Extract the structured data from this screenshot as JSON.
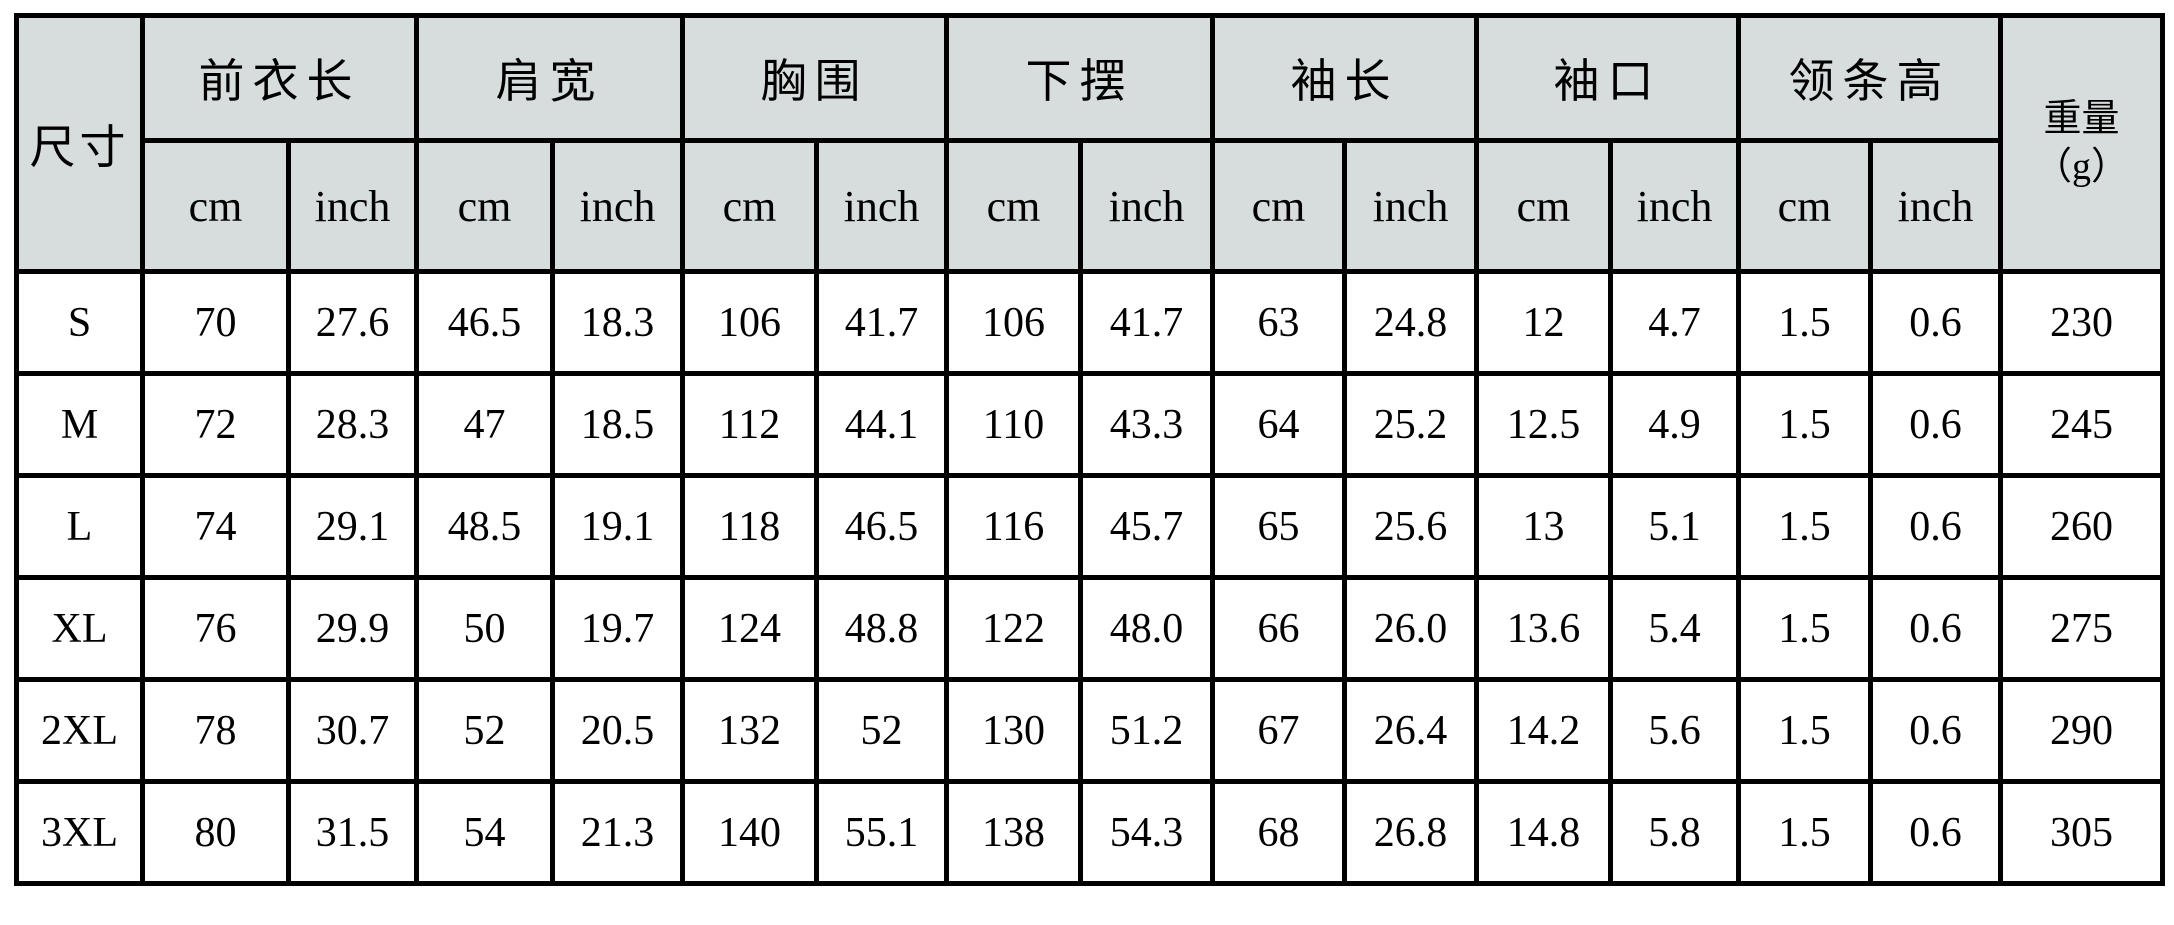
{
  "colors": {
    "header_bg": "#d6dddc",
    "border": "#000000",
    "row_bg": "#ffffff"
  },
  "table": {
    "size_col_header": "尺寸",
    "unit_cm": "cm",
    "unit_inch": "inch",
    "weight_header": {
      "line1": "重量",
      "line2": "（g）"
    },
    "groups": [
      {
        "label": "前衣长"
      },
      {
        "label": "肩宽"
      },
      {
        "label": "胸围"
      },
      {
        "label": "下摆"
      },
      {
        "label": "袖长"
      },
      {
        "label": "袖口"
      },
      {
        "label": "领条高"
      }
    ],
    "rows": [
      {
        "size": "S",
        "values": [
          "70",
          "27.6",
          "46.5",
          "18.3",
          "106",
          "41.7",
          "106",
          "41.7",
          "63",
          "24.8",
          "12",
          "4.7",
          "1.5",
          "0.6"
        ],
        "weight": "230"
      },
      {
        "size": "M",
        "values": [
          "72",
          "28.3",
          "47",
          "18.5",
          "112",
          "44.1",
          "110",
          "43.3",
          "64",
          "25.2",
          "12.5",
          "4.9",
          "1.5",
          "0.6"
        ],
        "weight": "245"
      },
      {
        "size": "L",
        "values": [
          "74",
          "29.1",
          "48.5",
          "19.1",
          "118",
          "46.5",
          "116",
          "45.7",
          "65",
          "25.6",
          "13",
          "5.1",
          "1.5",
          "0.6"
        ],
        "weight": "260"
      },
      {
        "size": "XL",
        "values": [
          "76",
          "29.9",
          "50",
          "19.7",
          "124",
          "48.8",
          "122",
          "48.0",
          "66",
          "26.0",
          "13.6",
          "5.4",
          "1.5",
          "0.6"
        ],
        "weight": "275"
      },
      {
        "size": "2XL",
        "values": [
          "78",
          "30.7",
          "52",
          "20.5",
          "132",
          "52",
          "130",
          "51.2",
          "67",
          "26.4",
          "14.2",
          "5.6",
          "1.5",
          "0.6"
        ],
        "weight": "290"
      },
      {
        "size": "3XL",
        "values": [
          "80",
          "31.5",
          "54",
          "21.3",
          "140",
          "55.1",
          "138",
          "54.3",
          "68",
          "26.8",
          "14.8",
          "5.8",
          "1.5",
          "0.6"
        ],
        "weight": "305"
      }
    ]
  }
}
